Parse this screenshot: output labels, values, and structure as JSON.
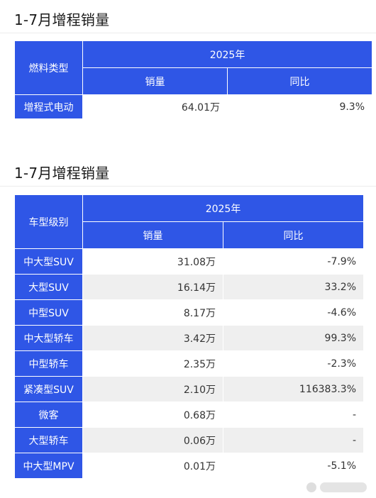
{
  "section1": {
    "title": "1-7月增程销量",
    "header": {
      "col0": "燃料类型",
      "year": "2025年",
      "sales": "销量",
      "yoy": "同比"
    },
    "rows": [
      {
        "label": "增程式电动",
        "sales": "64.01万",
        "yoy": "9.3%"
      }
    ]
  },
  "section2": {
    "title": "1-7月增程销量",
    "header": {
      "col0": "车型级别",
      "year": "2025年",
      "sales": "销量",
      "yoy": "同比"
    },
    "rows": [
      {
        "label": "中大型SUV",
        "sales": "31.08万",
        "yoy": "-7.9%"
      },
      {
        "label": "大型SUV",
        "sales": "16.14万",
        "yoy": "33.2%"
      },
      {
        "label": "中型SUV",
        "sales": "8.17万",
        "yoy": "-4.6%"
      },
      {
        "label": "中大型轿车",
        "sales": "3.42万",
        "yoy": "99.3%"
      },
      {
        "label": "中型轿车",
        "sales": "2.35万",
        "yoy": "-2.3%"
      },
      {
        "label": "紧凑型SUV",
        "sales": "2.10万",
        "yoy": "116383.3%"
      },
      {
        "label": "微客",
        "sales": "0.68万",
        "yoy": "-"
      },
      {
        "label": "大型轿车",
        "sales": "0.06万",
        "yoy": "-"
      },
      {
        "label": "中大型MPV",
        "sales": "0.01万",
        "yoy": "-5.1%"
      }
    ]
  },
  "colors": {
    "header_blue": "#2f56e6",
    "row_stripe": "#efefef"
  },
  "icons": {
    "watermark": "logo-watermark-icon"
  }
}
